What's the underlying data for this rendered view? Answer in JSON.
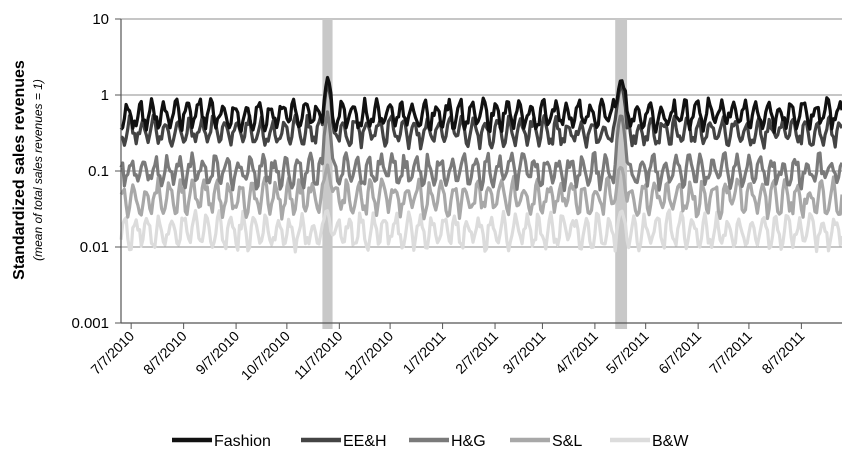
{
  "chart_data": {
    "type": "line",
    "title": "",
    "ylabel": "Standardized sales revenues",
    "ylabel_sub": "(mean of total sales revenues = 1)",
    "yscale": "log",
    "ylim": [
      0.001,
      10
    ],
    "y_ticks": [
      "10",
      "1",
      "0.1",
      "0.01",
      "0.001"
    ],
    "x_start": "7/1/2010",
    "x_end": "8/31/2011",
    "x_tick_labels": [
      "7/7/2010",
      "8/7/2010",
      "9/7/2010",
      "10/7/2010",
      "11/7/2010",
      "12/7/2010",
      "1/7/2011",
      "2/7/2011",
      "3/7/2011",
      "4/7/2011",
      "5/7/2011",
      "6/7/2011",
      "7/7/2011",
      "8/7/2011"
    ],
    "grid": "horizontal",
    "legend_position": "bottom",
    "highlight_periods": [
      {
        "start": "10/28/2010",
        "end": "11/3/2010",
        "color": "#c8c8c8"
      },
      {
        "start": "4/19/2011",
        "end": "4/26/2011",
        "color": "#c8c8c8"
      }
    ],
    "series": [
      {
        "name": "Fashion",
        "color": "#111111",
        "base": 0.55,
        "amp": 0.18,
        "peak": 1.7
      },
      {
        "name": "EE&H",
        "color": "#444444",
        "base": 0.33,
        "amp": 0.18,
        "peak": 1.5
      },
      {
        "name": "H&G",
        "color": "#7a7a7a",
        "base": 0.1,
        "amp": 0.2,
        "peak": 0.6
      },
      {
        "name": "S&L",
        "color": "#a8a8a8",
        "base": 0.045,
        "amp": 0.22,
        "peak": 0.12
      },
      {
        "name": "B&W",
        "color": "#dcdcdc",
        "base": 0.016,
        "amp": 0.22,
        "peak": 0.03
      }
    ]
  }
}
